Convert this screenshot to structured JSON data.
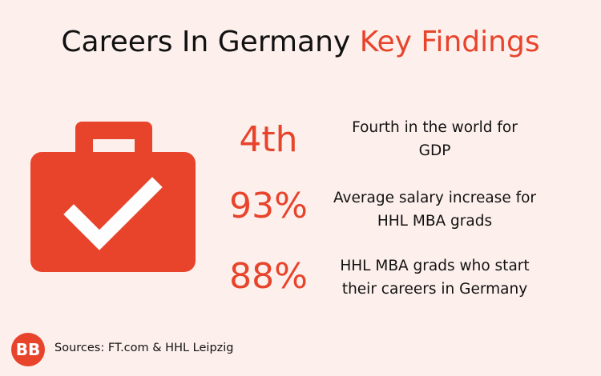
{
  "header": {
    "title": "Careers In Germany",
    "highlight": "Key Findings"
  },
  "findings": [
    {
      "figure": "4th",
      "description": [
        "Fourth in the world for",
        "GDP"
      ]
    },
    {
      "figure": "93%",
      "description": [
        "Average salary increase for",
        "HHL MBA grads"
      ]
    },
    {
      "figure": "88%",
      "description": [
        "HHL MBA grads who start",
        "their careers in Germany"
      ]
    }
  ],
  "footer": {
    "logo": "BB",
    "source": "Sources: FT.com & HHL Leipzig"
  }
}
